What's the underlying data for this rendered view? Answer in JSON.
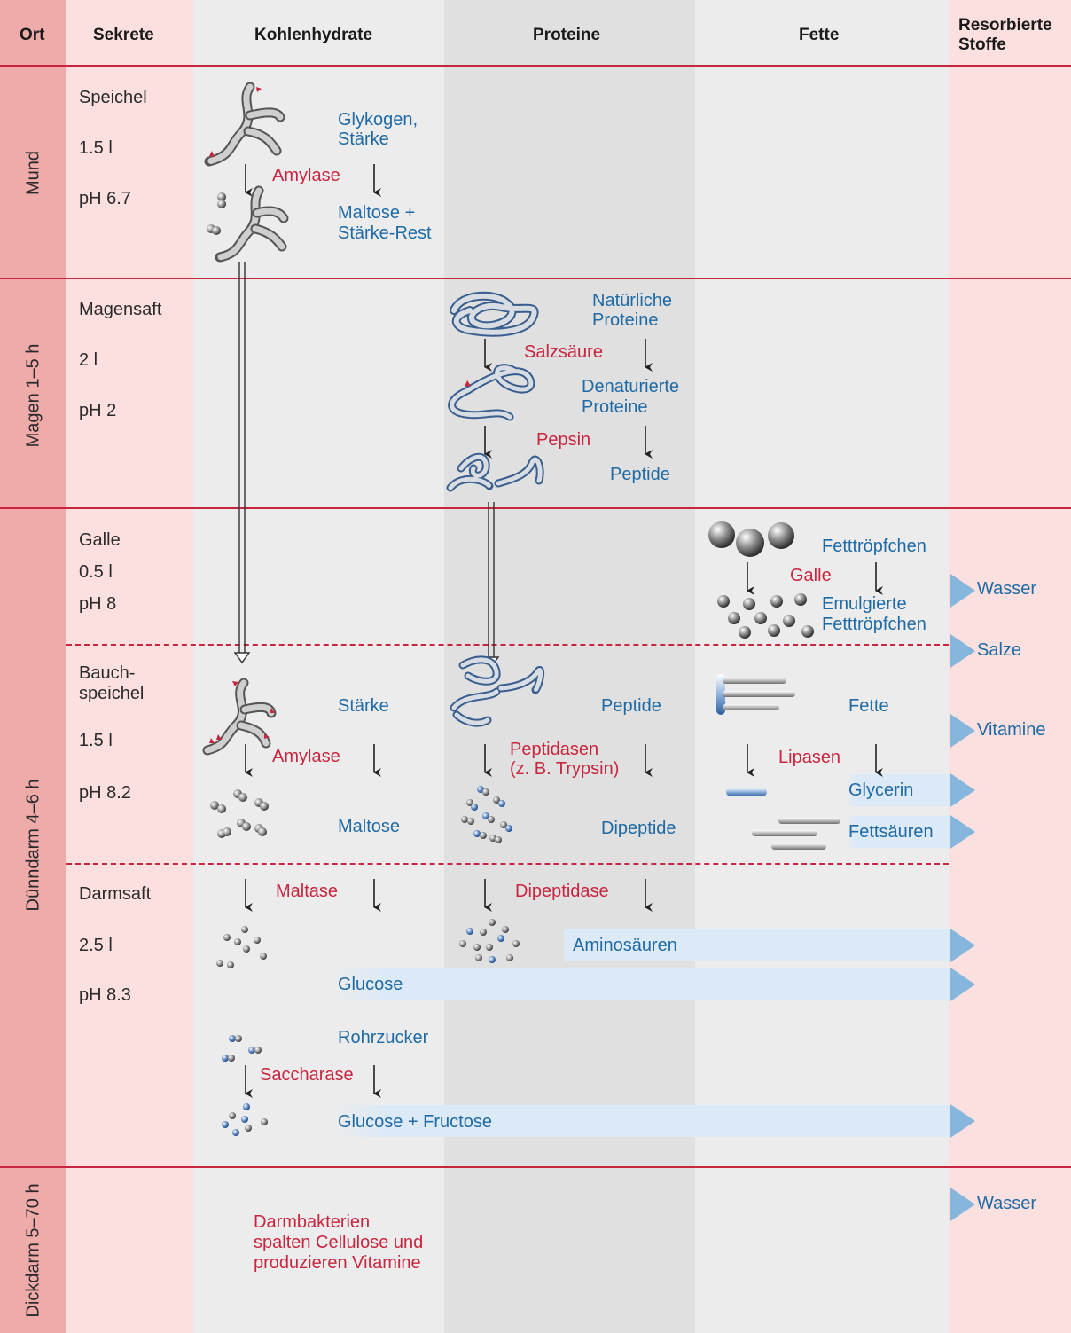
{
  "headers": {
    "ort": "Ort",
    "sekrete": "Sekrete",
    "kohlenhydrate": "Kohlenhydrate",
    "proteine": "Proteine",
    "fette": "Fette",
    "resorbierte_line1": "Resorbierte",
    "resorbierte_line2": "Stoffe"
  },
  "locations": {
    "mund": "Mund",
    "magen": "Magen 1–5 h",
    "duenndarm": "Dünndarm 4–6 h",
    "dickdarm": "Dickdarm 5–70 h"
  },
  "secretions": {
    "speichel": "Speichel",
    "speichel_vol": "1.5 l",
    "speichel_ph": "pH 6.7",
    "magensaft": "Magensaft",
    "magensaft_vol": "2 l",
    "magensaft_ph": "pH 2",
    "galle": "Galle",
    "galle_vol": "0.5 l",
    "galle_ph": "pH 8",
    "bauch_line1": "Bauch-",
    "bauch_line2": "speichel",
    "bauch_vol": "1.5 l",
    "bauch_ph": "pH 8.2",
    "darmsaft": "Darmsaft",
    "darmsaft_vol": "2.5 l",
    "darmsaft_ph": "pH 8.3"
  },
  "carbs": {
    "glykogen_line1": "Glykogen,",
    "glykogen_line2": "Stärke",
    "amylase_mouth": "Amylase",
    "maltose_line1": "Maltose +",
    "maltose_line2": "Stärke-Rest",
    "staerke": "Stärke",
    "amylase_pancreas": "Amylase",
    "maltose": "Maltose",
    "maltase": "Maltase",
    "glucose": "Glucose",
    "rohrzucker": "Rohrzucker",
    "saccharase": "Saccharase",
    "glucose_fructose": "Glucose + Fructose",
    "bakterien_line1": "Darmbakterien",
    "bakterien_line2": "spalten Cellulose und",
    "bakterien_line3": "produzieren Vitamine"
  },
  "proteins": {
    "natuerliche_line1": "Natürliche",
    "natuerliche_line2": "Proteine",
    "salzsaeure": "Salzsäure",
    "denaturierte_line1": "Denaturierte",
    "denaturierte_line2": "Proteine",
    "pepsin": "Pepsin",
    "peptide_stomach": "Peptide",
    "peptide_intestine": "Peptide",
    "peptidasen_line1": "Peptidasen",
    "peptidasen_line2": "(z. B. Trypsin)",
    "dipeptide": "Dipeptide",
    "dipeptidase": "Dipeptidase",
    "aminosaeuren": "Aminosäuren"
  },
  "fats": {
    "fetttroepfchen": "Fetttröpfchen",
    "galle": "Galle",
    "emulgierte_line1": "Emulgierte",
    "emulgierte_line2": "Fetttröpfchen",
    "fette": "Fette",
    "lipasen": "Lipasen",
    "glycerin": "Glycerin",
    "fettsaeuren": "Fettsäuren"
  },
  "absorbed": {
    "wasser": "Wasser",
    "salze": "Salze",
    "vitamine": "Vitamine",
    "wasser_dickdarm": "Wasser"
  },
  "colors": {
    "ort_column": "#efaaaa",
    "pink_column": "#fbe0df",
    "gray_light": "#ececec",
    "gray_dark": "#e0e0e0",
    "accent_red": "#c8253f",
    "text_blue": "#1f6aa5",
    "arrow_blue": "#86b6dc"
  }
}
